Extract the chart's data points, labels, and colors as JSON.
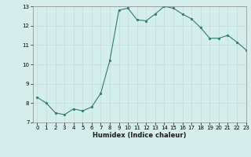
{
  "x": [
    0,
    1,
    2,
    3,
    4,
    5,
    6,
    7,
    8,
    9,
    10,
    11,
    12,
    13,
    14,
    15,
    16,
    17,
    18,
    19,
    20,
    21,
    22,
    23
  ],
  "y": [
    8.3,
    8.0,
    7.5,
    7.4,
    7.7,
    7.6,
    7.8,
    8.5,
    10.2,
    12.8,
    12.9,
    12.3,
    12.25,
    12.6,
    13.0,
    12.9,
    12.6,
    12.35,
    11.9,
    11.35,
    11.35,
    11.5,
    11.15,
    10.75
  ],
  "xlabel": "Humidex (Indice chaleur)",
  "xlim": [
    -0.5,
    23
  ],
  "ylim": [
    7,
    13
  ],
  "yticks": [
    7,
    8,
    9,
    10,
    11,
    12,
    13
  ],
  "xticks": [
    0,
    1,
    2,
    3,
    4,
    5,
    6,
    7,
    8,
    9,
    10,
    11,
    12,
    13,
    14,
    15,
    16,
    17,
    18,
    19,
    20,
    21,
    22,
    23
  ],
  "line_color": "#2e7d6e",
  "marker_color": "#2e7d6e",
  "bg_color": "#d4eeeb",
  "grid_color": "#c0ddd9",
  "tick_fontsize": 5,
  "xlabel_fontsize": 6,
  "marker_size": 1.8,
  "line_width": 0.8
}
